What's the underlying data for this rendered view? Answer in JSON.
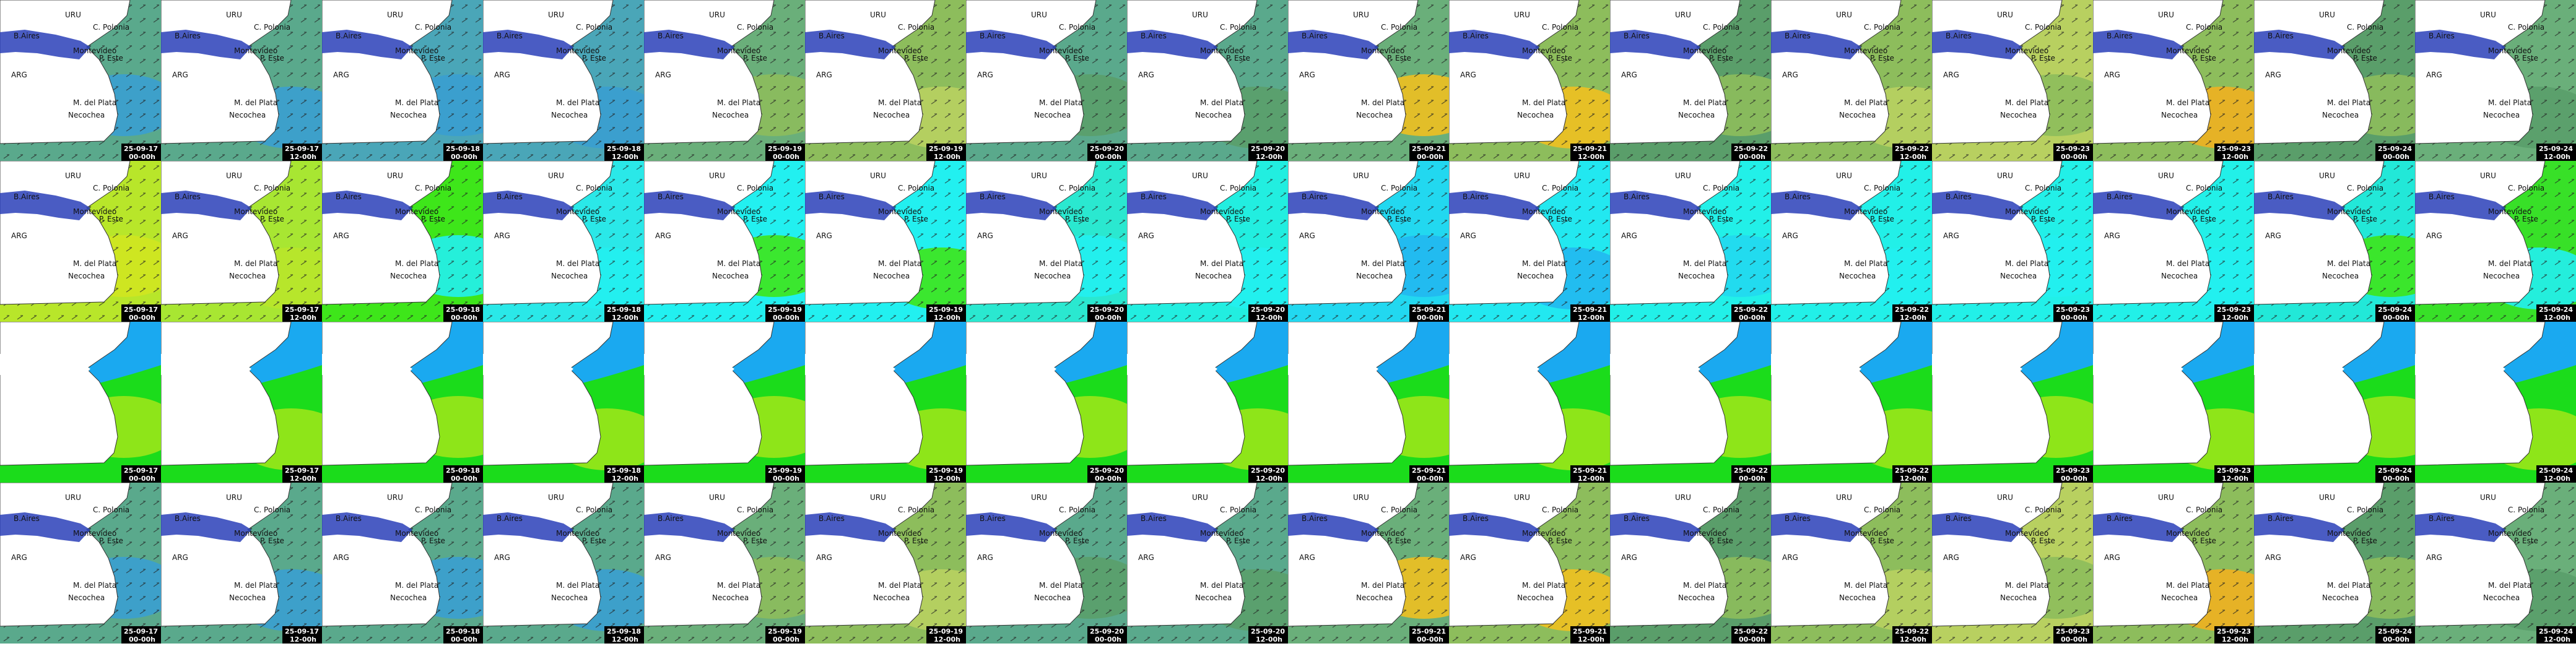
{
  "dates": [
    "25-09-17",
    "25-09-17",
    "25-09-18",
    "25-09-18",
    "25-09-19",
    "25-09-19",
    "25-09-20",
    "25-09-20",
    "25-09-21",
    "25-09-21",
    "25-09-22",
    "25-09-22",
    "25-09-23",
    "25-09-23",
    "25-09-24",
    "25-09-24"
  ],
  "times": [
    "00-00h",
    "12-00h",
    "00-00h",
    "12-00h",
    "00-00h",
    "12-00h",
    "00-00h",
    "12-00h",
    "00-00h",
    "12-00h",
    "00-00h",
    "12-00h",
    "00-00h",
    "12-00h",
    "00-00h",
    "12-00h"
  ],
  "places": [
    "URU",
    "B.Aires",
    "C. Polonia",
    "Montevideo",
    "P. Este",
    "ARG",
    "M. del Plata",
    "Necochea"
  ],
  "rows": [
    {
      "bg": [
        "#5aa98c",
        "#5aa98c",
        "#4aa6b8",
        "#4aa6b8",
        "#6aaf7a",
        "#8dbd5c",
        "#5aa98c",
        "#5aa98c",
        "#6aaf7a",
        "#8dbd5c",
        "#5a9e6a",
        "#8dbd5c",
        "#b8d060",
        "#8dbd5c",
        "#5a9e6a",
        "#6aaf7a"
      ],
      "blob": [
        "#3a9fd0",
        "#3a9fd0",
        "#3a9fd0",
        "#3a9fd0",
        "#8dbd5c",
        "#b8d060",
        "#5a9e6a",
        "#5a9e6a",
        "#f0c020",
        "#f0c020",
        "#8dbd5c",
        "#b8d060",
        "#8dbd5c",
        "#f0b020",
        "#8dbd5c",
        "#5a9e6a"
      ]
    },
    {
      "bg": [
        "#b8e62a",
        "#a8e632",
        "#3ee61a",
        "#2ae8e8",
        "#22f0f0",
        "#22f0f0",
        "#2ae8d0",
        "#22eee0",
        "#22d8f0",
        "#22e8f0",
        "#22f0e8",
        "#22f0e8",
        "#22f0e8",
        "#22f0e8",
        "#22e8d8",
        "#38e028"
      ],
      "blob": [
        "#d0e620",
        "#b8e62a",
        "#22f0f0",
        "#22f0f0",
        "#3ee61a",
        "#3ee61a",
        "#22f0f0",
        "#22f0f0",
        "#22b8f0",
        "#22b8f0",
        "#22d8f0",
        "#22f0f0",
        "#22f0f0",
        "#22f0f0",
        "#3ee61a",
        "#22f0f0"
      ]
    },
    {
      "band": "#1aa9f0",
      "bg": [
        "#1bdc1b",
        "#1bdc1b",
        "#1bdc1b",
        "#1bdc1b",
        "#1bdc1b",
        "#1bdc1b",
        "#1bdc1b",
        "#1bdc1b",
        "#1bdc1b",
        "#1bdc1b",
        "#1bdc1b",
        "#1bdc1b",
        "#1bdc1b",
        "#1bdc1b",
        "#1bdc1b",
        "#1bdc1b"
      ],
      "blob": [
        "#9be61a",
        "#9be61a",
        "#9be61a",
        "#9be61a",
        "#9be61a",
        "#9be61a",
        "#9be61a",
        "#9be61a",
        "#9be61a",
        "#9be61a",
        "#9be61a",
        "#9be61a",
        "#9be61a",
        "#9be61a",
        "#9be61a",
        "#9be61a"
      ]
    },
    {
      "bg": [
        "#5aa98c",
        "#5aa98c",
        "#5aa98c",
        "#5aa98c",
        "#6aaf7a",
        "#8dbd5c",
        "#5aa98c",
        "#5aa98c",
        "#6aaf7a",
        "#8dbd5c",
        "#5a9e6a",
        "#8dbd5c",
        "#b8d060",
        "#8dbd5c",
        "#5a9e6a",
        "#6aaf7a"
      ],
      "blob": [
        "#3a9fd0",
        "#3a9fd0",
        "#3a9fd0",
        "#3a9fd0",
        "#8dbd5c",
        "#b8d060",
        "#5a9e6a",
        "#5a9e6a",
        "#f0c020",
        "#f0c020",
        "#8dbd5c",
        "#b8d060",
        "#8dbd5c",
        "#f0b020",
        "#8dbd5c",
        "#5a9e6a"
      ]
    }
  ]
}
